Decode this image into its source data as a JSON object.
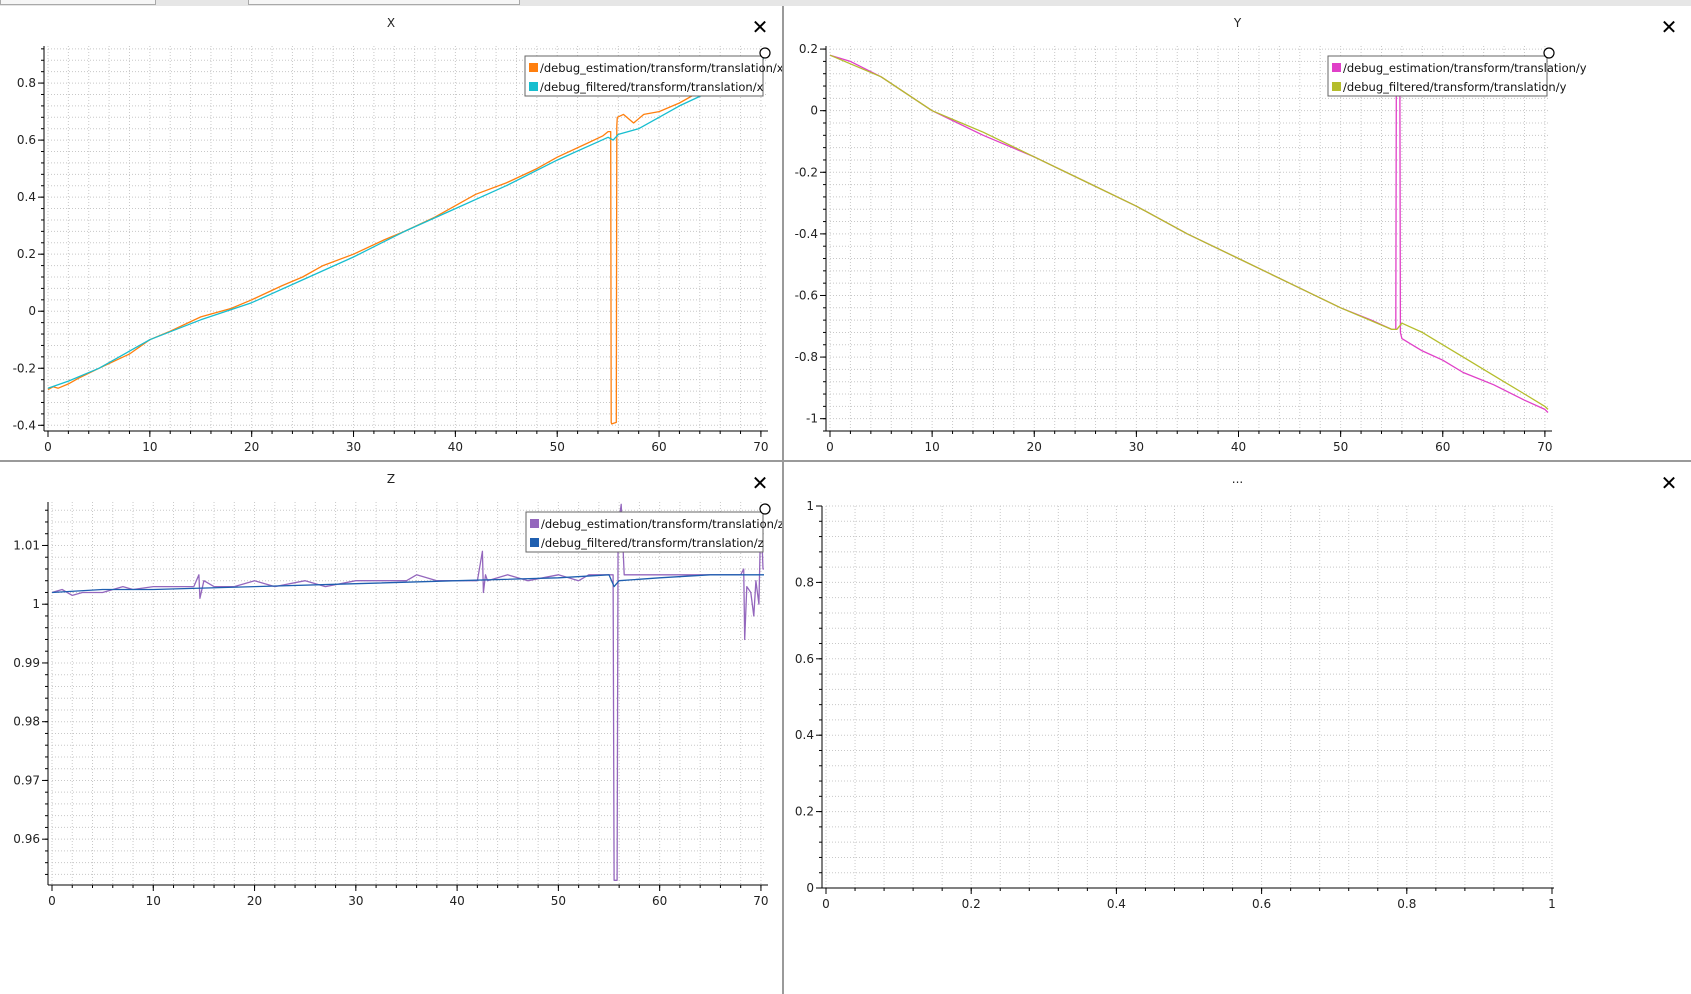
{
  "window": {
    "tabs": [
      "",
      "",
      ""
    ]
  },
  "panels": [
    {
      "title": "X",
      "close_label": "✕",
      "chart_data": {
        "type": "line",
        "title": "X",
        "xlim": [
          0,
          70.5
        ],
        "ylim": [
          -0.42,
          0.93
        ],
        "x_ticks": [
          0,
          10,
          20,
          30,
          40,
          50,
          60,
          70
        ],
        "y_ticks": [
          -0.4,
          -0.2,
          0,
          0.2,
          0.4,
          0.6,
          0.8
        ],
        "x_tick_labels": [
          "0",
          "10",
          "20",
          "30",
          "40",
          "50",
          "60",
          "70"
        ],
        "y_tick_labels": [
          "-0.4",
          "-0.2",
          "0",
          "0.2",
          "0.4",
          "0.6",
          "0.8"
        ],
        "grid": true,
        "legend_position": "top-right",
        "series": [
          {
            "name": "/debug_estimation/transform/translation/x",
            "color": "#ff7f0e",
            "x": [
              0,
              0.5,
              1,
              2,
              3,
              5,
              8,
              10,
              12,
              15,
              18,
              20,
              23,
              25,
              27,
              30,
              33,
              35,
              38,
              40,
              42,
              45,
              48,
              50,
              53,
              54.5,
              55,
              55.25,
              55.3,
              55.35,
              55.8,
              55.85,
              55.9,
              56.5,
              57.5,
              58.5,
              60,
              62,
              64,
              66,
              68,
              70,
              70.3
            ],
            "y": [
              -0.275,
              -0.265,
              -0.27,
              -0.255,
              -0.235,
              -0.2,
              -0.15,
              -0.1,
              -0.07,
              -0.02,
              0.01,
              0.04,
              0.09,
              0.12,
              0.16,
              0.2,
              0.25,
              0.28,
              0.33,
              0.37,
              0.41,
              0.45,
              0.5,
              0.54,
              0.59,
              0.615,
              0.63,
              0.63,
              -0.39,
              -0.395,
              -0.39,
              0.65,
              0.68,
              0.69,
              0.66,
              0.69,
              0.7,
              0.73,
              0.77,
              0.8,
              0.84,
              0.88,
              0.9
            ]
          },
          {
            "name": "/debug_filtered/transform/translation/x",
            "color": "#17becf",
            "x": [
              0,
              2,
              5,
              10,
              15,
              20,
              25,
              30,
              35,
              40,
              45,
              50,
              55,
              55.5,
              56,
              58,
              60,
              62,
              65,
              68,
              70,
              70.3
            ],
            "y": [
              -0.27,
              -0.245,
              -0.2,
              -0.1,
              -0.03,
              0.03,
              0.11,
              0.19,
              0.28,
              0.36,
              0.44,
              0.53,
              0.61,
              0.6,
              0.62,
              0.64,
              0.68,
              0.72,
              0.77,
              0.83,
              0.87,
              0.89
            ]
          }
        ]
      }
    },
    {
      "title": "Y",
      "close_label": "✕",
      "chart_data": {
        "type": "line",
        "title": "Y",
        "xlim": [
          0,
          70.5
        ],
        "ylim": [
          -1.04,
          0.21
        ],
        "x_ticks": [
          0,
          10,
          20,
          30,
          40,
          50,
          60,
          70
        ],
        "y_ticks": [
          -1,
          -0.8,
          -0.6,
          -0.4,
          -0.2,
          0,
          0.2
        ],
        "x_tick_labels": [
          "0",
          "10",
          "20",
          "30",
          "40",
          "50",
          "60",
          "70"
        ],
        "y_tick_labels": [
          "-1",
          "-0.8",
          "-0.6",
          "-0.4",
          "-0.2",
          "0",
          "0.2"
        ],
        "grid": true,
        "legend_position": "top-right",
        "series": [
          {
            "name": "/debug_estimation/transform/translation/y",
            "color": "#e040c8",
            "x": [
              0,
              2,
              5,
              10,
              15,
              20,
              25,
              30,
              35,
              40,
              45,
              50,
              53,
              55,
              55.4,
              55.45,
              55.8,
              55.85,
              56,
              57,
              58,
              60,
              62,
              65,
              68,
              70,
              70.3
            ],
            "y": [
              0.18,
              0.16,
              0.11,
              0.0,
              -0.08,
              -0.15,
              -0.23,
              -0.31,
              -0.4,
              -0.48,
              -0.56,
              -0.64,
              -0.68,
              -0.71,
              -0.71,
              0.05,
              0.05,
              -0.72,
              -0.74,
              -0.76,
              -0.78,
              -0.81,
              -0.85,
              -0.89,
              -0.94,
              -0.97,
              -0.98
            ]
          },
          {
            "name": "/debug_filtered/transform/translation/y",
            "color": "#b5bd2c",
            "x": [
              0,
              5,
              10,
              15,
              20,
              25,
              30,
              35,
              40,
              45,
              50,
              55,
              55.5,
              56,
              58,
              60,
              62,
              65,
              68,
              70,
              70.3
            ],
            "y": [
              0.18,
              0.11,
              0.0,
              -0.07,
              -0.15,
              -0.23,
              -0.31,
              -0.4,
              -0.48,
              -0.56,
              -0.64,
              -0.71,
              -0.71,
              -0.69,
              -0.72,
              -0.76,
              -0.8,
              -0.86,
              -0.92,
              -0.96,
              -0.97
            ]
          }
        ]
      }
    },
    {
      "title": "Z",
      "close_label": "✕",
      "chart_data": {
        "type": "line",
        "title": "Z",
        "xlim": [
          0,
          70.5
        ],
        "ylim": [
          0.9522,
          1.0174
        ],
        "x_ticks": [
          0,
          10,
          20,
          30,
          40,
          50,
          60,
          70
        ],
        "y_ticks": [
          0.96,
          0.97,
          0.98,
          0.99,
          1,
          1.01
        ],
        "x_tick_labels": [
          "0",
          "10",
          "20",
          "30",
          "40",
          "50",
          "60",
          "70"
        ],
        "y_tick_labels": [
          "0.96",
          "0.97",
          "0.98",
          "0.99",
          "1",
          "1.01"
        ],
        "grid": true,
        "legend_position": "top-right",
        "series": [
          {
            "name": "/debug_estimation/transform/translation/z",
            "color": "#9467bd",
            "x": [
              0,
              1,
              2,
              3,
              5,
              7,
              8,
              10,
              12,
              14,
              14.5,
              14.6,
              15,
              16,
              18,
              20,
              22,
              25,
              27,
              30,
              33,
              35,
              36,
              38,
              40,
              42,
              42.5,
              42.6,
              42.8,
              43,
              45,
              47,
              50,
              52,
              53,
              55,
              55.4,
              55.5,
              55.8,
              55.9,
              56.2,
              56.5,
              56.8,
              57,
              58,
              60,
              62,
              64,
              66,
              68,
              68.3,
              68.4,
              68.6,
              69,
              69.3,
              69.5,
              69.8,
              70,
              70.2,
              70.3
            ],
            "y": [
              1.002,
              1.0025,
              1.0015,
              1.002,
              1.002,
              1.003,
              1.0025,
              1.003,
              1.003,
              1.003,
              1.005,
              1.001,
              1.004,
              1.003,
              1.003,
              1.004,
              1.003,
              1.004,
              1.003,
              1.004,
              1.004,
              1.004,
              1.005,
              1.004,
              1.004,
              1.004,
              1.009,
              1.002,
              1.005,
              1.004,
              1.005,
              1.004,
              1.005,
              1.004,
              1.005,
              1.005,
              1.005,
              0.953,
              0.953,
              1.013,
              1.017,
              1.005,
              1.005,
              1.005,
              1.005,
              1.005,
              1.005,
              1.005,
              1.005,
              1.005,
              1.006,
              0.994,
              1.003,
              1.002,
              0.998,
              1.004,
              1.0,
              1.016,
              1.006,
              1.006
            ]
          },
          {
            "name": "/debug_filtered/transform/translation/z",
            "color": "#1f5fb0",
            "x": [
              0,
              5,
              10,
              20,
              30,
              40,
              50,
              55,
              55.5,
              56,
              60,
              65,
              70,
              70.3
            ],
            "y": [
              1.002,
              1.0025,
              1.0025,
              1.003,
              1.0035,
              1.004,
              1.0045,
              1.005,
              1.003,
              1.004,
              1.0045,
              1.005,
              1.005,
              1.005
            ]
          }
        ]
      }
    },
    {
      "title": "...",
      "close_label": "✕",
      "chart_data": {
        "type": "line",
        "title": "...",
        "xlim": [
          0,
          1
        ],
        "ylim": [
          0,
          1
        ],
        "x_ticks": [
          0,
          0.2,
          0.4,
          0.6,
          0.8,
          1
        ],
        "y_ticks": [
          0,
          0.2,
          0.4,
          0.6,
          0.8,
          1
        ],
        "x_tick_labels": [
          "0",
          "0.2",
          "0.4",
          "0.6",
          "0.8",
          "1"
        ],
        "y_tick_labels": [
          "0",
          "0.2",
          "0.4",
          "0.6",
          "0.8",
          "1"
        ],
        "grid": true,
        "legend_position": "none",
        "series": []
      }
    }
  ]
}
